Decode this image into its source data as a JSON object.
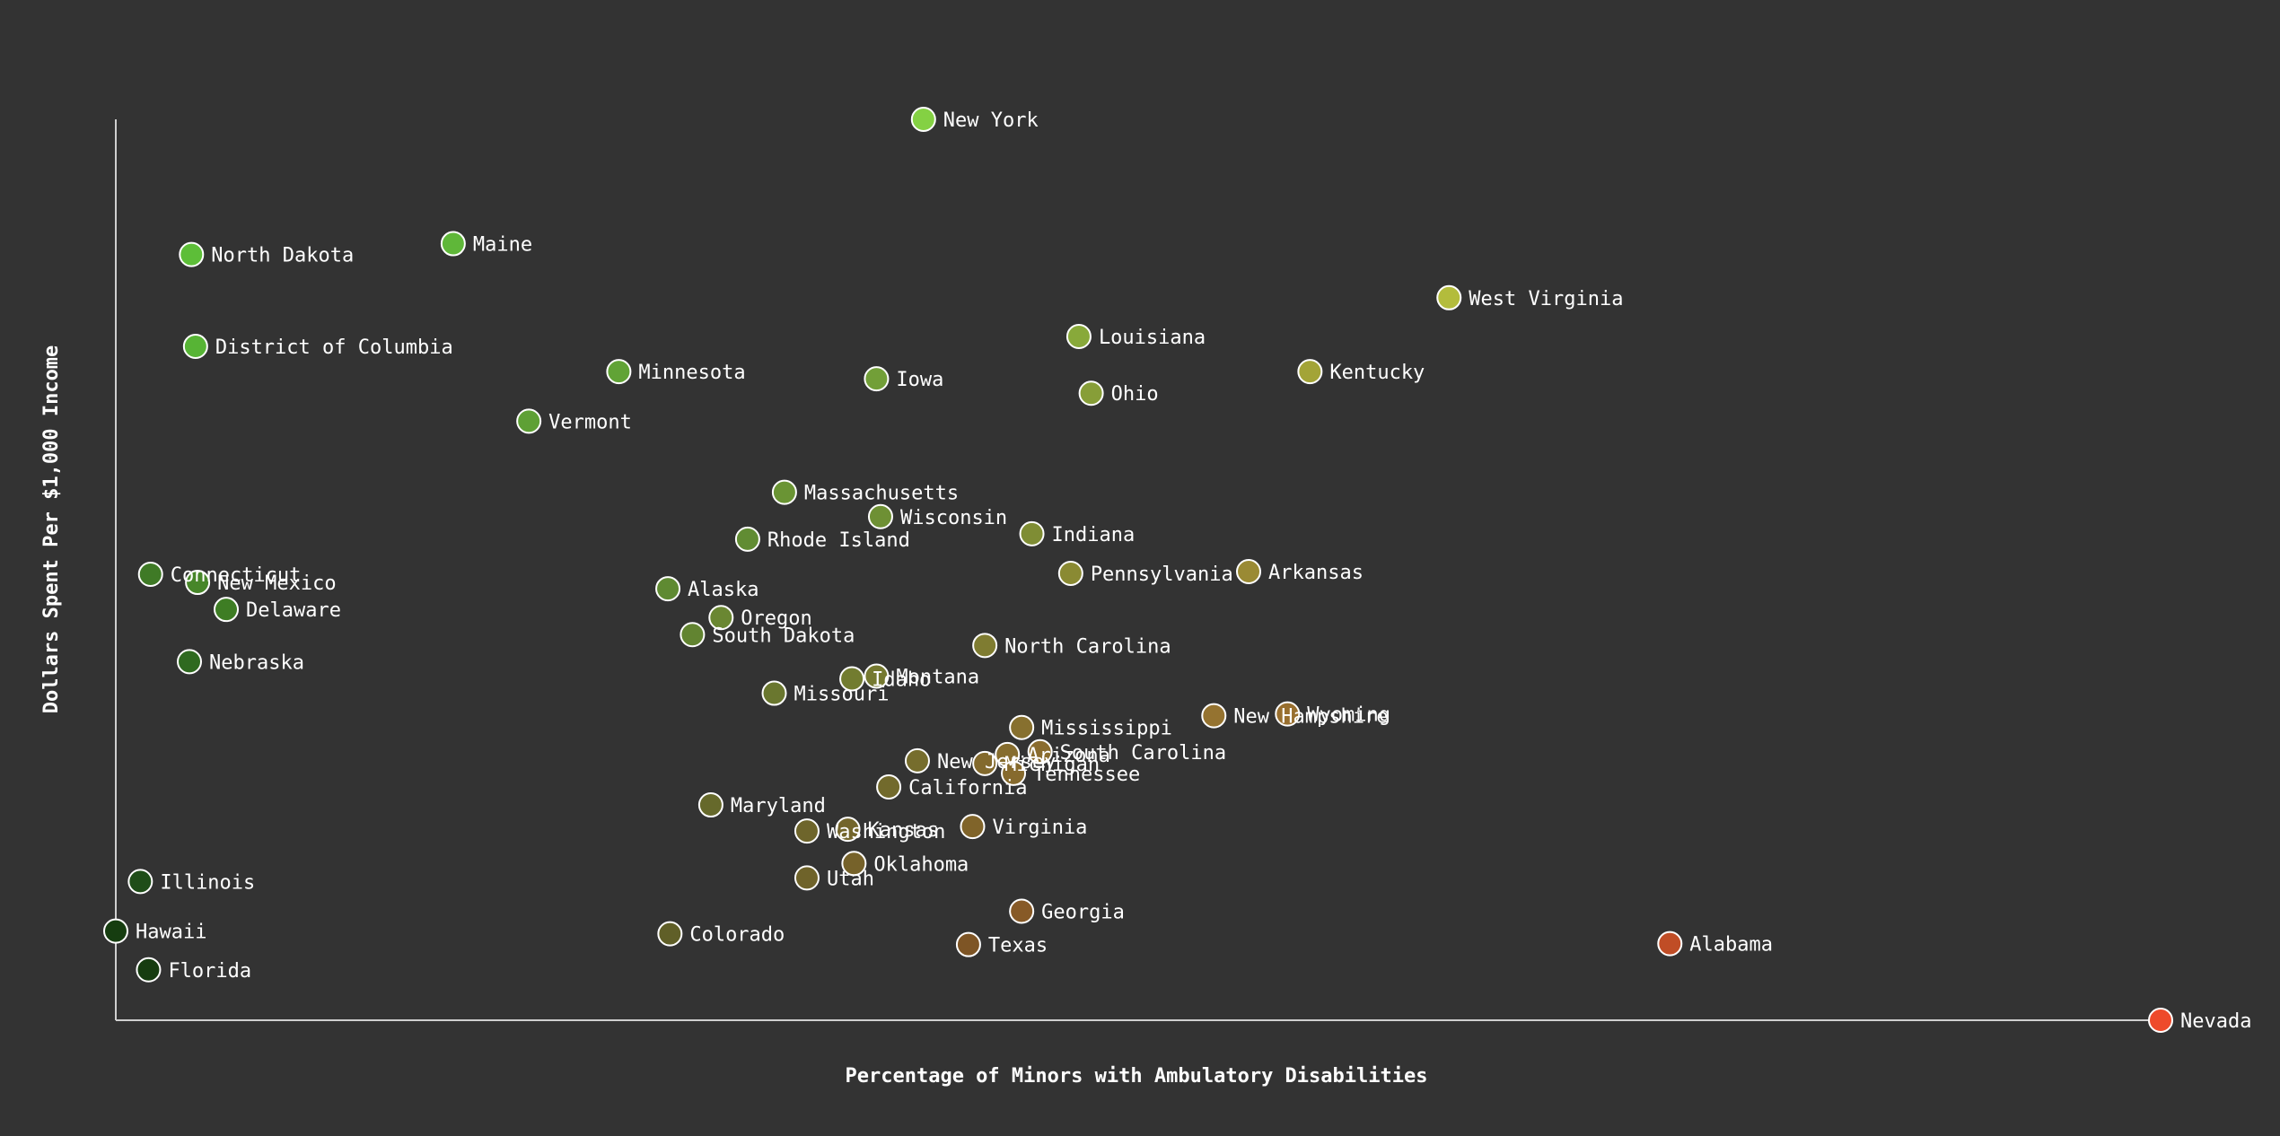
{
  "chart_data": {
    "type": "scatter",
    "title": "",
    "xlabel": "Percentage of Minors with Ambulatory Disabilities",
    "ylabel": "Dollars Spent Per $1,000 Income",
    "xlim": [
      0,
      100
    ],
    "ylim": [
      0,
      100
    ],
    "grid": false,
    "legend": "none",
    "colors": {
      "background": "#333333",
      "axis": "#cfcfcf",
      "text": "#ffffff",
      "low": "#1e3d0e",
      "high": "#ee4a2b"
    },
    "points": [
      {
        "label": "New York",
        "x": 39.5,
        "y": 100.0,
        "color": "#84d143"
      },
      {
        "label": "North Dakota",
        "x": 3.7,
        "y": 85.0,
        "color": "#5dbe38"
      },
      {
        "label": "Maine",
        "x": 16.5,
        "y": 86.2,
        "color": "#5fb739"
      },
      {
        "label": "West Virginia",
        "x": 65.2,
        "y": 80.2,
        "color": "#b3bc3c"
      },
      {
        "label": "District of Columbia",
        "x": 3.9,
        "y": 74.8,
        "color": "#57b435"
      },
      {
        "label": "Louisiana",
        "x": 47.1,
        "y": 75.9,
        "color": "#88a93a"
      },
      {
        "label": "Minnesota",
        "x": 24.6,
        "y": 72.0,
        "color": "#61a336"
      },
      {
        "label": "Iowa",
        "x": 37.2,
        "y": 71.2,
        "color": "#729f38"
      },
      {
        "label": "Kentucky",
        "x": 58.4,
        "y": 72.0,
        "color": "#a3a437"
      },
      {
        "label": "Ohio",
        "x": 47.7,
        "y": 69.6,
        "color": "#879e38"
      },
      {
        "label": "Vermont",
        "x": 20.2,
        "y": 66.5,
        "color": "#5ea035"
      },
      {
        "label": "Massachusetts",
        "x": 32.7,
        "y": 58.6,
        "color": "#6a9434"
      },
      {
        "label": "Wisconsin",
        "x": 37.4,
        "y": 55.9,
        "color": "#6e9034"
      },
      {
        "label": "Indiana",
        "x": 44.8,
        "y": 54.0,
        "color": "#7f8d34"
      },
      {
        "label": "Rhode Island",
        "x": 30.9,
        "y": 53.4,
        "color": "#618c33"
      },
      {
        "label": "Pennsylvania",
        "x": 46.7,
        "y": 49.6,
        "color": "#8a8a33"
      },
      {
        "label": "Arkansas",
        "x": 55.4,
        "y": 49.8,
        "color": "#9a8a34"
      },
      {
        "label": "Connecticut",
        "x": 1.7,
        "y": 49.5,
        "color": "#3f7a26"
      },
      {
        "label": "New Mexico",
        "x": 4.0,
        "y": 48.6,
        "color": "#478629"
      },
      {
        "label": "Alaska",
        "x": 27.0,
        "y": 47.9,
        "color": "#5f8a32"
      },
      {
        "label": "Delaware",
        "x": 5.4,
        "y": 45.6,
        "color": "#3e7d24"
      },
      {
        "label": "Oregon",
        "x": 29.6,
        "y": 44.7,
        "color": "#6a8732"
      },
      {
        "label": "South Dakota",
        "x": 28.2,
        "y": 42.8,
        "color": "#628431"
      },
      {
        "label": "North Carolina",
        "x": 42.5,
        "y": 41.6,
        "color": "#7f7c31"
      },
      {
        "label": "Nebraska",
        "x": 3.6,
        "y": 39.8,
        "color": "#2f6a20"
      },
      {
        "label": "Idaho",
        "x": 36.0,
        "y": 37.9,
        "color": "#727c30"
      },
      {
        "label": "Montana",
        "x": 37.2,
        "y": 38.2,
        "color": "#757930"
      },
      {
        "label": "Missouri",
        "x": 32.2,
        "y": 36.3,
        "color": "#6a772f"
      },
      {
        "label": "New Hampshire",
        "x": 53.7,
        "y": 33.8,
        "color": "#957330"
      },
      {
        "label": "Wyoming",
        "x": 57.3,
        "y": 34.0,
        "color": "#986f2f"
      },
      {
        "label": "Mississippi",
        "x": 44.3,
        "y": 32.5,
        "color": "#87702f"
      },
      {
        "label": "South Carolina",
        "x": 45.2,
        "y": 29.8,
        "color": "#8a6c2e"
      },
      {
        "label": "Arizona",
        "x": 43.6,
        "y": 29.5,
        "color": "#866d2e"
      },
      {
        "label": "New Jersey",
        "x": 39.2,
        "y": 28.8,
        "color": "#766d2d"
      },
      {
        "label": "Michigan",
        "x": 42.5,
        "y": 28.5,
        "color": "#836a2d"
      },
      {
        "label": "Tennessee",
        "x": 43.9,
        "y": 27.4,
        "color": "#866a2d"
      },
      {
        "label": "California",
        "x": 37.8,
        "y": 25.9,
        "color": "#726a2c"
      },
      {
        "label": "Maryland",
        "x": 29.1,
        "y": 23.9,
        "color": "#66692b"
      },
      {
        "label": "Virginia",
        "x": 41.9,
        "y": 21.5,
        "color": "#80642a"
      },
      {
        "label": "Washington",
        "x": 33.8,
        "y": 21.0,
        "color": "#6e652b"
      },
      {
        "label": "Kansas",
        "x": 35.8,
        "y": 21.2,
        "color": "#73652b"
      },
      {
        "label": "Oklahoma",
        "x": 36.1,
        "y": 17.4,
        "color": "#76622a"
      },
      {
        "label": "Utah",
        "x": 33.8,
        "y": 15.8,
        "color": "#6f632a"
      },
      {
        "label": "Illinois",
        "x": 1.2,
        "y": 15.4,
        "color": "#1f4d18"
      },
      {
        "label": "Georgia",
        "x": 44.3,
        "y": 12.1,
        "color": "#875a27"
      },
      {
        "label": "Hawaii",
        "x": 0.0,
        "y": 9.9,
        "color": "#163d10"
      },
      {
        "label": "Colorado",
        "x": 27.1,
        "y": 9.6,
        "color": "#605f28"
      },
      {
        "label": "Texas",
        "x": 41.7,
        "y": 8.4,
        "color": "#7e5525"
      },
      {
        "label": "Alabama",
        "x": 76.0,
        "y": 8.5,
        "color": "#c04d26"
      },
      {
        "label": "Florida",
        "x": 1.6,
        "y": 5.6,
        "color": "#163c10"
      },
      {
        "label": "Nevada",
        "x": 100.0,
        "y": 0.0,
        "color": "#ee4a2b"
      }
    ]
  }
}
